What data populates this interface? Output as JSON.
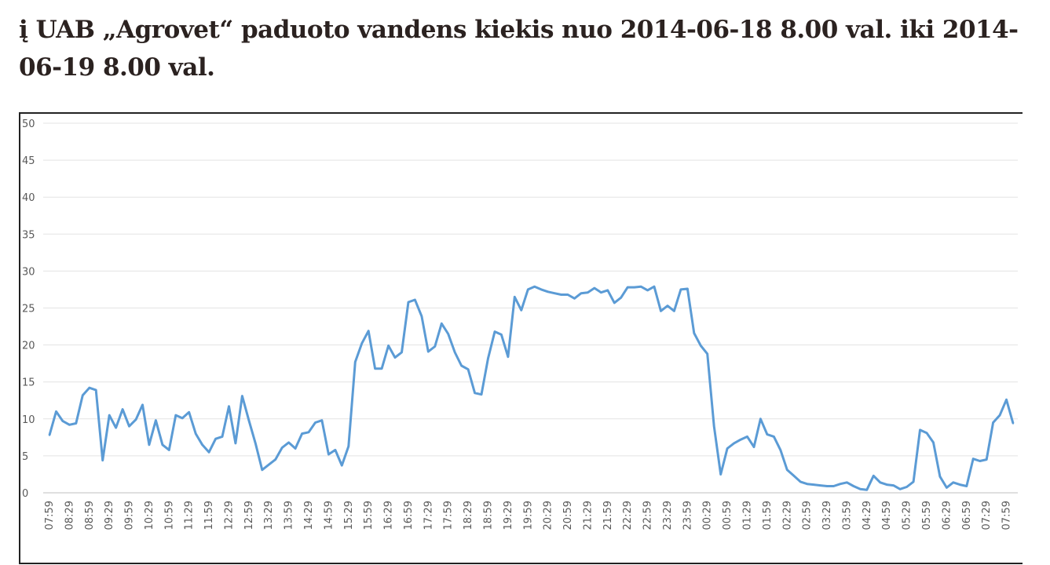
{
  "title": "į UAB „Agrovet“  paduoto vandens kiekis nuo 2014-06-18 8.00 val. iki 2014-06-19 8.00 val.",
  "chart_data": {
    "type": "line",
    "title": "į UAB „Agrovet“  paduoto vandens kiekis nuo 2014-06-18 8.00 val. iki 2014-06-19 8.00 val.",
    "xlabel": "",
    "ylabel": "",
    "ylim": [
      0,
      50
    ],
    "yticks": [
      0,
      5,
      10,
      15,
      20,
      25,
      30,
      35,
      40,
      45,
      50
    ],
    "grid": true,
    "legend": "none",
    "line_color": "#5b9bd5",
    "x_tick_labels": [
      "07:59",
      "08:29",
      "08:59",
      "09:29",
      "09:59",
      "10:29",
      "10:59",
      "11:29",
      "11:59",
      "12:29",
      "12:59",
      "13:29",
      "13:59",
      "14:29",
      "14:59",
      "15:29",
      "15:59",
      "16:29",
      "16:59",
      "17:29",
      "17:59",
      "18:29",
      "18:59",
      "19:29",
      "19:59",
      "20:29",
      "20:59",
      "21:29",
      "21:59",
      "22:29",
      "22:59",
      "23:29",
      "23:59",
      "00:29",
      "00:59",
      "01:29",
      "01:59",
      "02:29",
      "02:59",
      "03:29",
      "03:59",
      "04:29",
      "04:59",
      "05:29",
      "05:59",
      "06:29",
      "06:59",
      "07:29",
      "07:59"
    ],
    "interval_minutes": 10,
    "values": [
      7.8,
      11,
      9.7,
      9.2,
      9.4,
      13.2,
      14.2,
      13.9,
      4.4,
      10.5,
      8.8,
      11.3,
      9,
      9.9,
      11.9,
      6.5,
      9.8,
      6.5,
      5.8,
      10.5,
      10.1,
      10.9,
      8,
      6.5,
      5.5,
      7.3,
      7.6,
      11.7,
      6.7,
      13.1,
      9.8,
      6.7,
      3.1,
      3.8,
      4.5,
      6.1,
      6.8,
      6,
      8,
      8.2,
      9.5,
      9.8,
      5.2,
      5.8,
      3.7,
      6.3,
      17.7,
      20.2,
      21.9,
      16.8,
      16.8,
      19.9,
      18.3,
      19,
      25.8,
      26.1,
      23.9,
      19.1,
      19.8,
      22.9,
      21.5,
      19,
      17.2,
      16.7,
      13.5,
      13.3,
      18.2,
      21.8,
      21.4,
      18.4,
      26.5,
      24.7,
      27.5,
      27.9,
      27.5,
      27.2,
      27,
      26.8,
      26.8,
      26.3,
      27,
      27.1,
      27.7,
      27.1,
      27.4,
      25.7,
      26.4,
      27.8,
      27.8,
      27.9,
      27.4,
      27.9,
      24.6,
      25.3,
      24.6,
      27.5,
      27.6,
      21.6,
      19.9,
      18.8,
      9,
      2.5,
      6,
      6.7,
      7.2,
      7.6,
      6.2,
      10,
      7.9,
      7.6,
      5.8,
      3.1,
      2.3,
      1.5,
      1.2,
      1.1,
      1,
      0.9,
      0.9,
      1.2,
      1.4,
      0.9,
      0.5,
      0.4,
      2.3,
      1.4,
      1.1,
      1,
      0.5,
      0.8,
      1.5,
      8.5,
      8.1,
      6.8,
      2.2,
      0.7,
      1.4,
      1.1,
      0.9,
      4.6,
      4.3,
      4.5,
      9.5,
      10.5,
      12.6,
      9.4
    ]
  }
}
